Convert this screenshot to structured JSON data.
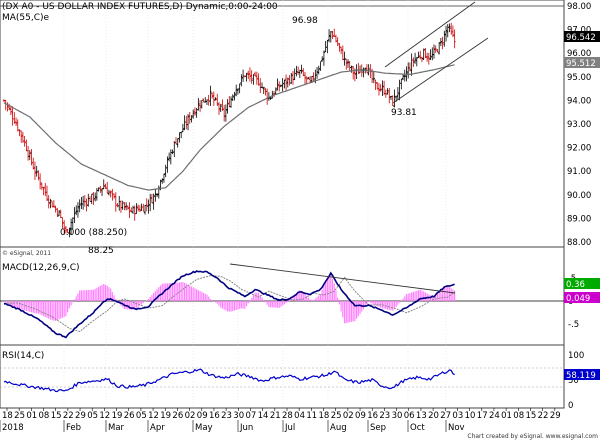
{
  "header": {
    "title": "(DX A0 - US DOLLAR INDEX FUTURES,D) Dynamic,0:00-24:00",
    "ma_label": "MA(55,C)e",
    "macd_label": "MACD(12,26,9,C)",
    "rsi_label": "RSI(14,C)",
    "copyright": "© eSignal, 2011",
    "footer": "Chart created by eSignal. www.esignal.com"
  },
  "annotations": {
    "high": "96.98",
    "low_recent": "93.81",
    "low_2018": "88.25",
    "fib_zero": "0.000 (88.250)"
  },
  "colors": {
    "up": "#000000",
    "down": "#cc0000",
    "ma": "#6e6e6e",
    "macd_line": "#000080",
    "signal": "#888888",
    "hist": "#ff80ff",
    "rsi": "#0000cc",
    "last_price_box": "#000000",
    "ma_box": "#808080",
    "macd_box": "#00aa00",
    "signal_box": "#cc00cc",
    "rsi_box": "#0000cc"
  },
  "chart_data": {
    "type": "candlestick",
    "price_axis": {
      "ticks": [
        "98.00",
        "97.00",
        "96.00",
        "95.00",
        "94.00",
        "93.00",
        "92.00",
        "91.00",
        "90.00",
        "89.00",
        "88.00"
      ],
      "ylim": [
        87.6,
        98.1
      ]
    },
    "macd_axis": {
      "ticks": [
        ".5",
        "0",
        "-.5"
      ],
      "ylim": [
        -0.95,
        0.75
      ]
    },
    "rsi_axis": {
      "ticks": [
        "100",
        "50",
        "0"
      ],
      "ylim": [
        0,
        100
      ]
    },
    "last_price": "96.542",
    "ma_value": "95.512",
    "macd_value": "0.36",
    "signal_value": "0.049",
    "rsi_value": "58.119",
    "day_labels": [
      "18",
      "25",
      "01",
      "08",
      "15",
      "22",
      "29",
      "05",
      "12",
      "19",
      "26",
      "05",
      "12",
      "19",
      "26",
      "02",
      "09",
      "16",
      "23",
      "30",
      "07",
      "14",
      "21",
      "28",
      "04",
      "11",
      "18",
      "25",
      "02",
      "09",
      "16",
      "23",
      "30",
      "06",
      "13",
      "20",
      "27",
      "03",
      "10",
      "17",
      "24",
      "01",
      "08",
      "15",
      "22",
      "29"
    ],
    "month_labels": [
      "2018",
      "Feb",
      "Mar",
      "Apr",
      "May",
      "Jun",
      "Jul",
      "Aug",
      "Sep",
      "Oct",
      "Nov"
    ],
    "price_keypoints": [
      [
        0,
        94.0
      ],
      [
        6,
        93.2
      ],
      [
        12,
        92.2
      ],
      [
        18,
        91.0
      ],
      [
        26,
        89.8
      ],
      [
        32,
        89.2
      ],
      [
        36,
        88.4
      ],
      [
        44,
        89.6
      ],
      [
        52,
        89.9
      ],
      [
        58,
        90.4
      ],
      [
        66,
        89.6
      ],
      [
        74,
        89.3
      ],
      [
        82,
        89.5
      ],
      [
        88,
        90.0
      ],
      [
        94,
        91.2
      ],
      [
        100,
        92.3
      ],
      [
        108,
        93.3
      ],
      [
        114,
        93.9
      ],
      [
        120,
        94.2
      ],
      [
        128,
        93.4
      ],
      [
        134,
        94.4
      ],
      [
        140,
        95.1
      ],
      [
        148,
        94.8
      ],
      [
        154,
        94.1
      ],
      [
        160,
        94.6
      ],
      [
        166,
        94.9
      ],
      [
        172,
        95.2
      ],
      [
        178,
        94.7
      ],
      [
        184,
        95.6
      ],
      [
        190,
        96.9
      ],
      [
        192,
        96.7
      ],
      [
        198,
        95.7
      ],
      [
        204,
        95.1
      ],
      [
        210,
        95.5
      ],
      [
        216,
        94.6
      ],
      [
        222,
        94.4
      ],
      [
        226,
        93.9
      ],
      [
        232,
        94.9
      ],
      [
        238,
        95.7
      ],
      [
        244,
        96.0
      ],
      [
        248,
        95.8
      ],
      [
        254,
        96.4
      ],
      [
        258,
        97.1
      ],
      [
        262,
        96.5
      ]
    ],
    "ma_keypoints": [
      [
        0,
        93.9
      ],
      [
        15,
        93.3
      ],
      [
        30,
        92.2
      ],
      [
        45,
        91.3
      ],
      [
        60,
        90.8
      ],
      [
        72,
        90.4
      ],
      [
        84,
        90.2
      ],
      [
        94,
        90.3
      ],
      [
        104,
        91.0
      ],
      [
        114,
        91.9
      ],
      [
        128,
        92.9
      ],
      [
        142,
        93.7
      ],
      [
        156,
        94.2
      ],
      [
        170,
        94.55
      ],
      [
        184,
        94.9
      ],
      [
        196,
        95.2
      ],
      [
        208,
        95.3
      ],
      [
        222,
        95.15
      ],
      [
        236,
        95.1
      ],
      [
        250,
        95.3
      ],
      [
        262,
        95.51
      ]
    ],
    "macd_keypoints": [
      [
        0,
        -0.05
      ],
      [
        10,
        -0.2
      ],
      [
        20,
        -0.4
      ],
      [
        30,
        -0.7
      ],
      [
        36,
        -0.78
      ],
      [
        44,
        -0.5
      ],
      [
        52,
        -0.25
      ],
      [
        58,
        0.0
      ],
      [
        62,
        0.05
      ],
      [
        68,
        -0.05
      ],
      [
        76,
        -0.18
      ],
      [
        84,
        -0.12
      ],
      [
        90,
        0.1
      ],
      [
        96,
        0.3
      ],
      [
        104,
        0.55
      ],
      [
        112,
        0.65
      ],
      [
        118,
        0.63
      ],
      [
        124,
        0.5
      ],
      [
        130,
        0.3
      ],
      [
        140,
        0.1
      ],
      [
        146,
        0.25
      ],
      [
        152,
        0.15
      ],
      [
        160,
        0.02
      ],
      [
        166,
        0.05
      ],
      [
        172,
        0.2
      ],
      [
        178,
        0.15
      ],
      [
        184,
        0.25
      ],
      [
        190,
        0.6
      ],
      [
        196,
        0.25
      ],
      [
        204,
        -0.1
      ],
      [
        212,
        -0.1
      ],
      [
        220,
        -0.2
      ],
      [
        226,
        -0.3
      ],
      [
        234,
        -0.15
      ],
      [
        242,
        0.05
      ],
      [
        250,
        0.1
      ],
      [
        256,
        0.3
      ],
      [
        262,
        0.36
      ]
    ],
    "rsi_keypoints": [
      [
        0,
        48
      ],
      [
        10,
        40
      ],
      [
        20,
        35
      ],
      [
        28,
        30
      ],
      [
        36,
        28
      ],
      [
        44,
        45
      ],
      [
        52,
        48
      ],
      [
        60,
        52
      ],
      [
        66,
        38
      ],
      [
        74,
        36
      ],
      [
        82,
        40
      ],
      [
        90,
        50
      ],
      [
        98,
        62
      ],
      [
        106,
        66
      ],
      [
        114,
        70
      ],
      [
        120,
        60
      ],
      [
        128,
        54
      ],
      [
        136,
        62
      ],
      [
        144,
        56
      ],
      [
        150,
        48
      ],
      [
        158,
        55
      ],
      [
        166,
        58
      ],
      [
        172,
        52
      ],
      [
        180,
        56
      ],
      [
        188,
        60
      ],
      [
        192,
        68
      ],
      [
        198,
        50
      ],
      [
        206,
        45
      ],
      [
        214,
        50
      ],
      [
        220,
        38
      ],
      [
        226,
        34
      ],
      [
        232,
        48
      ],
      [
        240,
        55
      ],
      [
        248,
        52
      ],
      [
        256,
        66
      ],
      [
        260,
        70
      ],
      [
        262,
        58
      ]
    ]
  }
}
